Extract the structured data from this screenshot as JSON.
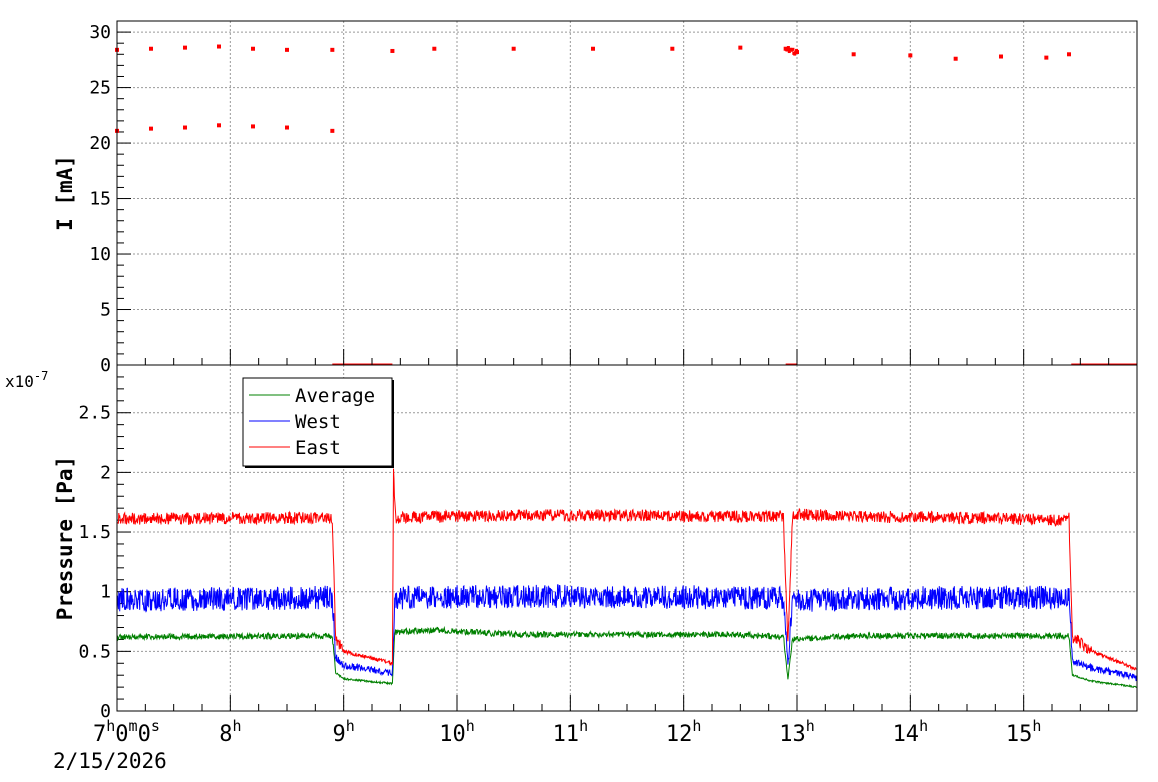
{
  "chart_data": [
    {
      "type": "scatter",
      "title": "",
      "xlabel": "",
      "ylabel": "I [mA]",
      "ylim": [
        0,
        31
      ],
      "y_ticks": [
        "0",
        "5",
        "10",
        "15",
        "20",
        "25",
        "30"
      ],
      "grid": true,
      "series": [
        {
          "color": "#ff0000",
          "points_hours": [
            [
              7.0,
              28.4
            ],
            [
              7.3,
              28.5
            ],
            [
              7.6,
              28.6
            ],
            [
              7.9,
              28.7
            ],
            [
              8.2,
              28.5
            ],
            [
              8.5,
              28.4
            ],
            [
              8.9,
              28.4
            ],
            [
              9.43,
              28.3
            ],
            [
              9.8,
              28.5
            ],
            [
              10.5,
              28.5
            ],
            [
              11.2,
              28.5
            ],
            [
              11.9,
              28.5
            ],
            [
              12.5,
              28.6
            ],
            [
              12.9,
              28.5
            ],
            [
              13.0,
              28.2
            ],
            [
              13.5,
              28.0
            ],
            [
              14.0,
              27.9
            ],
            [
              14.4,
              27.6
            ],
            [
              14.8,
              27.8
            ],
            [
              15.2,
              27.7
            ],
            [
              15.4,
              28.0
            ],
            [
              7.0,
              21.1
            ],
            [
              7.3,
              21.3
            ],
            [
              7.6,
              21.4
            ],
            [
              7.9,
              21.6
            ],
            [
              8.2,
              21.5
            ],
            [
              8.5,
              21.4
            ],
            [
              8.9,
              21.1
            ],
            [
              8.9,
              0
            ],
            [
              9.43,
              0
            ],
            [
              12.9,
              0
            ],
            [
              13.0,
              0
            ],
            [
              15.42,
              0
            ],
            [
              16.0,
              0
            ]
          ]
        }
      ]
    },
    {
      "type": "line",
      "title": "",
      "xlabel": "",
      "ylabel": "Pressure [Pa]",
      "y_multiplier": "x10",
      "y_multiplier_exp": "-7",
      "ylim": [
        0,
        2.9
      ],
      "y_ticks": [
        "0",
        "0.5",
        "1",
        "1.5",
        "2",
        "2.5"
      ],
      "grid": true,
      "legend_position": "top-left",
      "series": [
        {
          "name": "Average",
          "color": "#008000",
          "points_hours": [
            [
              7.0,
              0.62
            ],
            [
              8.9,
              0.63
            ],
            [
              8.93,
              0.32
            ],
            [
              9.0,
              0.27
            ],
            [
              9.43,
              0.23
            ],
            [
              9.45,
              0.66
            ],
            [
              9.8,
              0.68
            ],
            [
              10.5,
              0.64
            ],
            [
              11.5,
              0.64
            ],
            [
              12.5,
              0.64
            ],
            [
              12.88,
              0.62
            ],
            [
              12.92,
              0.27
            ],
            [
              12.96,
              0.6
            ],
            [
              13.5,
              0.63
            ],
            [
              14.5,
              0.63
            ],
            [
              15.4,
              0.63
            ],
            [
              15.43,
              0.3
            ],
            [
              15.6,
              0.25
            ],
            [
              16.0,
              0.2
            ]
          ]
        },
        {
          "name": "West",
          "color": "#0000ff",
          "points_hours": [
            [
              7.0,
              0.93
            ],
            [
              8.9,
              0.95
            ],
            [
              8.93,
              0.45
            ],
            [
              9.0,
              0.38
            ],
            [
              9.43,
              0.32
            ],
            [
              9.45,
              0.95
            ],
            [
              10.5,
              0.96
            ],
            [
              11.5,
              0.96
            ],
            [
              12.5,
              0.95
            ],
            [
              12.88,
              0.94
            ],
            [
              12.92,
              0.4
            ],
            [
              12.96,
              0.92
            ],
            [
              13.5,
              0.94
            ],
            [
              14.5,
              0.95
            ],
            [
              15.4,
              0.95
            ],
            [
              15.43,
              0.42
            ],
            [
              15.6,
              0.36
            ],
            [
              16.0,
              0.28
            ]
          ]
        },
        {
          "name": "East",
          "color": "#ff0000",
          "points_hours": [
            [
              7.0,
              1.61
            ],
            [
              8.9,
              1.62
            ],
            [
              8.93,
              0.6
            ],
            [
              9.0,
              0.5
            ],
            [
              9.43,
              0.4
            ],
            [
              9.44,
              2.0
            ],
            [
              9.46,
              1.62
            ],
            [
              10.5,
              1.64
            ],
            [
              11.5,
              1.64
            ],
            [
              12.5,
              1.63
            ],
            [
              12.88,
              1.63
            ],
            [
              12.92,
              0.56
            ],
            [
              12.96,
              1.62
            ],
            [
              13.0,
              1.65
            ],
            [
              13.5,
              1.63
            ],
            [
              14.5,
              1.62
            ],
            [
              15.3,
              1.6
            ],
            [
              15.4,
              1.62
            ],
            [
              15.43,
              0.62
            ],
            [
              15.6,
              0.5
            ],
            [
              16.0,
              0.35
            ]
          ]
        }
      ]
    }
  ],
  "x_axis": {
    "range_hours": [
      7.0,
      16.0
    ],
    "ticks": [
      {
        "hour": 7,
        "label": "7",
        "sup": "h",
        "tail": "0",
        "tail_sup": "m",
        "tail2": "0",
        "tail2_sup": "s"
      },
      {
        "hour": 8,
        "label": "8",
        "sup": "h"
      },
      {
        "hour": 9,
        "label": "9",
        "sup": "h"
      },
      {
        "hour": 10,
        "label": "10",
        "sup": "h"
      },
      {
        "hour": 11,
        "label": "11",
        "sup": "h"
      },
      {
        "hour": 12,
        "label": "12",
        "sup": "h"
      },
      {
        "hour": 13,
        "label": "13",
        "sup": "h"
      },
      {
        "hour": 14,
        "label": "14",
        "sup": "h"
      },
      {
        "hour": 15,
        "label": "15",
        "sup": "h"
      }
    ],
    "date": "2/15/2026"
  }
}
